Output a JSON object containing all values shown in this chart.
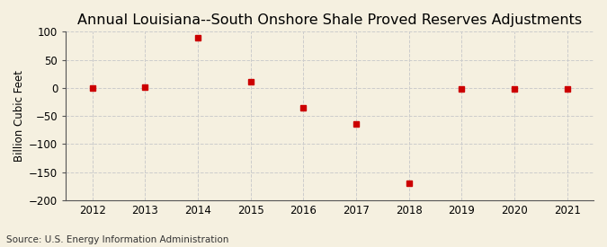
{
  "title": "Annual Louisiana--South Onshore Shale Proved Reserves Adjustments",
  "ylabel": "Billion Cubic Feet",
  "source": "Source: U.S. Energy Information Administration",
  "years": [
    2012,
    2013,
    2014,
    2015,
    2016,
    2017,
    2018,
    2019,
    2020,
    2021
  ],
  "values": [
    0,
    2,
    90,
    11,
    -35,
    -65,
    -170,
    -2,
    -2,
    -2
  ],
  "ylim": [
    -200,
    100
  ],
  "yticks": [
    -200,
    -150,
    -100,
    -50,
    0,
    50,
    100
  ],
  "xlim": [
    2011.5,
    2021.5
  ],
  "marker_color": "#cc0000",
  "marker_size": 5,
  "background_color": "#f5f0e0",
  "grid_color": "#cccccc",
  "title_fontsize": 11.5,
  "label_fontsize": 8.5,
  "tick_fontsize": 8.5,
  "source_fontsize": 7.5,
  "spine_color": "#555555"
}
